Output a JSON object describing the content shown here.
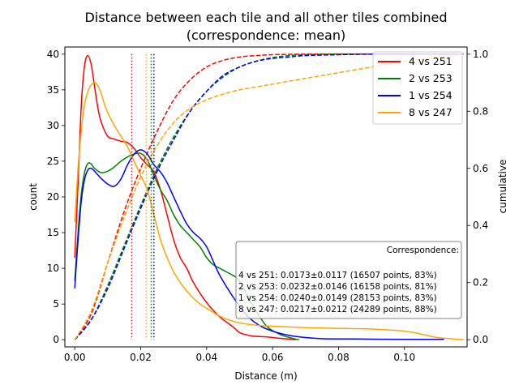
{
  "chart_data": {
    "type": "line",
    "title_line1": "Distance between each tile and all other tiles combined",
    "title_line2": "(correspondence: mean)",
    "xlabel": "Distance (m)",
    "ylabel": "count",
    "y2label": "cumulative",
    "xlim": [
      -0.003,
      0.119
    ],
    "ylim": [
      -1.0,
      41.0
    ],
    "y2lim": [
      -0.025,
      1.025
    ],
    "xticks": [
      0.0,
      0.02,
      0.04,
      0.06,
      0.08,
      0.1
    ],
    "xtick_labels": [
      "0.00",
      "0.02",
      "0.04",
      "0.06",
      "0.08",
      "0.10"
    ],
    "yticks": [
      0,
      5,
      10,
      15,
      20,
      25,
      30,
      35,
      40
    ],
    "ytick_labels": [
      "0",
      "5",
      "10",
      "15",
      "20",
      "25",
      "30",
      "35",
      "40"
    ],
    "y2ticks": [
      0.0,
      0.2,
      0.4,
      0.6,
      0.8,
      1.0
    ],
    "y2tick_labels": [
      "0.0",
      "0.2",
      "0.4",
      "0.6",
      "0.8",
      "1.0"
    ],
    "legend": {
      "position": "top-right"
    },
    "series": [
      {
        "name": "4 vs 251",
        "color": "#ff0000",
        "mean": 0.0173,
        "density_x": [
          0.0,
          0.001,
          0.002,
          0.003,
          0.004,
          0.005,
          0.006,
          0.007,
          0.008,
          0.01,
          0.012,
          0.014,
          0.016,
          0.018,
          0.02,
          0.022,
          0.024,
          0.026,
          0.028,
          0.03,
          0.032,
          0.034,
          0.036,
          0.04,
          0.044,
          0.048,
          0.05,
          0.052,
          0.054,
          0.058,
          0.062,
          0.066,
          0.067
        ],
        "density_y": [
          11.5,
          22,
          33,
          38.5,
          39.8,
          38.5,
          35.5,
          32.5,
          30.5,
          28.5,
          28.1,
          27.8,
          27.6,
          26.8,
          25.5,
          24.5,
          23.5,
          21,
          17.5,
          14,
          11.5,
          10,
          8,
          5.2,
          3.2,
          1.8,
          1.0,
          0.7,
          0.5,
          0.4,
          0.2,
          0.05,
          0.0
        ],
        "cum_x": [
          0.0,
          0.005,
          0.01,
          0.015,
          0.02,
          0.025,
          0.03,
          0.035,
          0.04,
          0.045,
          0.05,
          0.055,
          0.06,
          0.07,
          0.08,
          0.118
        ],
        "cum_y": [
          0.0,
          0.09,
          0.27,
          0.45,
          0.6,
          0.73,
          0.84,
          0.91,
          0.955,
          0.978,
          0.99,
          0.995,
          0.998,
          1.0,
          1.0,
          1.0
        ]
      },
      {
        "name": "2 vs 253",
        "color": "#008000",
        "mean": 0.0232,
        "density_x": [
          0.0,
          0.001,
          0.002,
          0.003,
          0.004,
          0.005,
          0.006,
          0.008,
          0.01,
          0.012,
          0.014,
          0.016,
          0.018,
          0.02,
          0.022,
          0.024,
          0.026,
          0.028,
          0.03,
          0.032,
          0.034,
          0.036,
          0.038,
          0.04,
          0.042,
          0.044,
          0.046,
          0.048,
          0.05,
          0.054,
          0.058,
          0.062,
          0.066,
          0.068
        ],
        "density_y": [
          8.2,
          15,
          20.5,
          23.5,
          24.7,
          24.6,
          24.0,
          23.4,
          23.6,
          24.2,
          25.0,
          25.6,
          26.0,
          26.1,
          25.2,
          23.0,
          21.0,
          19.5,
          17.5,
          16.0,
          15.0,
          14.0,
          13.0,
          11.5,
          10.5,
          10.0,
          9.5,
          9.0,
          8.2,
          4.8,
          2.0,
          0.8,
          0.2,
          0.0
        ],
        "cum_x": [
          0.0,
          0.005,
          0.01,
          0.015,
          0.02,
          0.025,
          0.03,
          0.035,
          0.04,
          0.045,
          0.05,
          0.055,
          0.06,
          0.065,
          0.07,
          0.08,
          0.09,
          0.118
        ],
        "cum_y": [
          0.0,
          0.07,
          0.19,
          0.33,
          0.47,
          0.6,
          0.71,
          0.8,
          0.87,
          0.92,
          0.955,
          0.975,
          0.988,
          0.995,
          0.998,
          1.0,
          1.0,
          1.0
        ]
      },
      {
        "name": "1 vs 254",
        "color": "#0000ff",
        "mean": 0.024,
        "density_x": [
          0.0,
          0.001,
          0.002,
          0.003,
          0.004,
          0.005,
          0.006,
          0.008,
          0.01,
          0.012,
          0.014,
          0.016,
          0.018,
          0.02,
          0.022,
          0.024,
          0.026,
          0.028,
          0.03,
          0.032,
          0.034,
          0.036,
          0.038,
          0.04,
          0.042,
          0.044,
          0.048,
          0.052,
          0.056,
          0.06,
          0.064,
          0.068,
          0.075,
          0.085,
          0.1,
          0.112
        ],
        "density_y": [
          7.2,
          14,
          19.5,
          22.5,
          23.8,
          24.0,
          23.6,
          22.6,
          21.8,
          21.5,
          22.5,
          24.5,
          26.0,
          26.6,
          26.0,
          24.5,
          23.5,
          22.0,
          20.0,
          18.0,
          16.2,
          15.0,
          14.2,
          13.0,
          11.0,
          9.0,
          6.0,
          3.5,
          2.0,
          1.2,
          0.7,
          0.4,
          0.15,
          0.1,
          0.05,
          0.05
        ],
        "cum_x": [
          0.0,
          0.005,
          0.01,
          0.015,
          0.02,
          0.025,
          0.03,
          0.035,
          0.04,
          0.045,
          0.05,
          0.055,
          0.06,
          0.065,
          0.07,
          0.08,
          0.09,
          0.1,
          0.118
        ],
        "cum_y": [
          0.0,
          0.07,
          0.18,
          0.32,
          0.46,
          0.59,
          0.7,
          0.8,
          0.87,
          0.925,
          0.955,
          0.975,
          0.985,
          0.99,
          0.995,
          0.998,
          1.0,
          1.0,
          1.0
        ]
      },
      {
        "name": "8 vs 247",
        "color": "#ffa500",
        "mean": 0.0217,
        "density_x": [
          0.0,
          0.001,
          0.002,
          0.003,
          0.004,
          0.005,
          0.006,
          0.007,
          0.008,
          0.009,
          0.01,
          0.012,
          0.014,
          0.016,
          0.018,
          0.02,
          0.022,
          0.024,
          0.026,
          0.028,
          0.03,
          0.032,
          0.034,
          0.036,
          0.038,
          0.04,
          0.044,
          0.048,
          0.052,
          0.056,
          0.06,
          0.07,
          0.08,
          0.09,
          0.1,
          0.105,
          0.11,
          0.118
        ],
        "density_y": [
          16.5,
          24,
          29.5,
          33,
          34.8,
          35.7,
          36.0,
          35.6,
          34.5,
          33.0,
          31.8,
          30.0,
          28.5,
          27.0,
          25.0,
          23.0,
          21.0,
          17.5,
          14.0,
          11.5,
          9.5,
          8.0,
          6.8,
          5.8,
          5.0,
          4.4,
          3.3,
          2.6,
          2.2,
          2.0,
          1.9,
          1.7,
          1.6,
          1.5,
          1.2,
          0.8,
          0.3,
          0.0
        ],
        "cum_x": [
          0.0,
          0.005,
          0.01,
          0.015,
          0.02,
          0.025,
          0.03,
          0.035,
          0.04,
          0.045,
          0.05,
          0.055,
          0.06,
          0.07,
          0.08,
          0.09,
          0.1,
          0.11,
          0.118
        ],
        "cum_y": [
          0.0,
          0.1,
          0.27,
          0.43,
          0.57,
          0.68,
          0.76,
          0.81,
          0.84,
          0.86,
          0.875,
          0.885,
          0.895,
          0.915,
          0.935,
          0.955,
          0.975,
          0.99,
          1.0
        ]
      }
    ],
    "annotation": {
      "title": "Correspondence:",
      "lines": [
        "4 vs 251: 0.0173±0.0117 (16507 points, 83%)",
        "2 vs 253: 0.0232±0.0146 (16158 points, 81%)",
        "1 vs 254: 0.0240±0.0149 (28153 points, 83%)",
        "8 vs 247: 0.0217±0.0212 (24289 points, 88%)"
      ]
    }
  }
}
